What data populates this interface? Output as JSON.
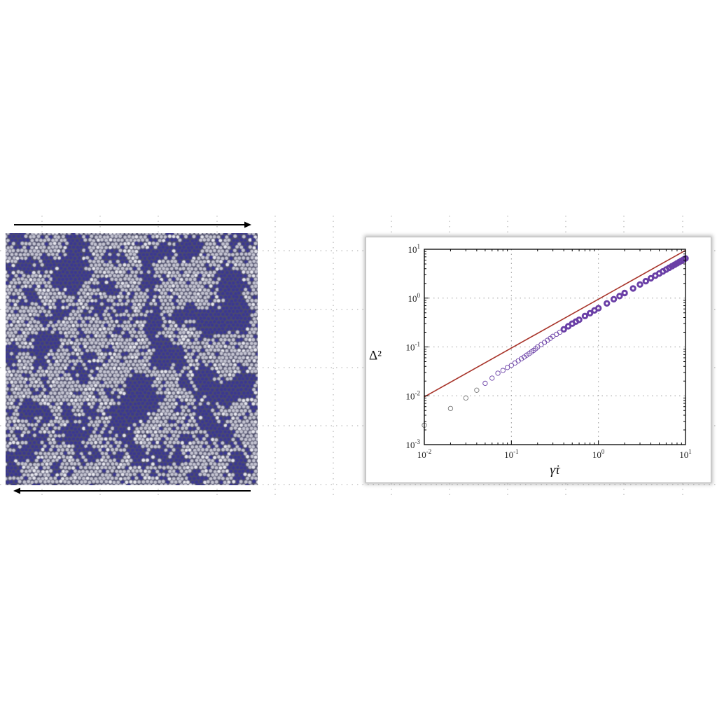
{
  "figure": {
    "left_panel": {
      "image": "particle-simulation-snapshot",
      "colors": {
        "particle_dark": "#3b3892",
        "particle_light": "#c4c4d2",
        "edge": "#55556a"
      },
      "arrow_top_direction": "right",
      "arrow_bottom_direction": "left"
    }
  },
  "chart_data": {
    "type": "scatter",
    "xlabel": "γ̇τ",
    "ylabel": "Δ²",
    "xscale": "log",
    "yscale": "log",
    "xlim": [
      0.01,
      10
    ],
    "ylim": [
      0.001,
      10
    ],
    "grid": true,
    "x_ticks": [
      {
        "base": "10",
        "exp": "-2",
        "value": 0.01
      },
      {
        "base": "10",
        "exp": "-1",
        "value": 0.1
      },
      {
        "base": "10",
        "exp": "0",
        "value": 1
      },
      {
        "base": "10",
        "exp": "1",
        "value": 10
      }
    ],
    "y_ticks": [
      {
        "base": "10",
        "exp": "-3",
        "value": 0.001
      },
      {
        "base": "10",
        "exp": "-2",
        "value": 0.01
      },
      {
        "base": "10",
        "exp": "-1",
        "value": 0.1
      },
      {
        "base": "10",
        "exp": "0",
        "value": 1
      },
      {
        "base": "10",
        "exp": "1",
        "value": 10
      }
    ],
    "series": [
      {
        "kind": "markers",
        "marker": "open-circle",
        "color": "#6a3fa6",
        "x": [
          0.01,
          0.02,
          0.03,
          0.04,
          0.05,
          0.06,
          0.07,
          0.08,
          0.09,
          0.1,
          0.11,
          0.12,
          0.13,
          0.14,
          0.15,
          0.16,
          0.17,
          0.18,
          0.19,
          0.2,
          0.22,
          0.24,
          0.26,
          0.28,
          0.3,
          0.33,
          0.36,
          0.4,
          0.45,
          0.5,
          0.55,
          0.6,
          0.7,
          0.8,
          0.9,
          1,
          1.25,
          1.5,
          1.75,
          2,
          2.5,
          3,
          3.5,
          4,
          4.5,
          5,
          5.5,
          6,
          6.5,
          7,
          7.5,
          8,
          8.5,
          9,
          9.5,
          10
        ],
        "y": [
          0.0025,
          0.0055,
          0.009,
          0.013,
          0.018,
          0.023,
          0.029,
          0.033,
          0.038,
          0.042,
          0.047,
          0.052,
          0.057,
          0.062,
          0.068,
          0.073,
          0.079,
          0.085,
          0.092,
          0.1,
          0.112,
          0.124,
          0.137,
          0.15,
          0.165,
          0.182,
          0.2,
          0.23,
          0.265,
          0.3,
          0.33,
          0.36,
          0.43,
          0.49,
          0.56,
          0.62,
          0.78,
          0.95,
          1.1,
          1.27,
          1.58,
          1.9,
          2.22,
          2.55,
          2.88,
          3.2,
          3.52,
          3.85,
          4.18,
          4.5,
          4.83,
          5.15,
          5.48,
          5.8,
          6.15,
          6.5
        ]
      },
      {
        "kind": "line",
        "color": "#a8342a",
        "x": [
          0.01,
          10
        ],
        "y": [
          0.0095,
          9.5
        ]
      }
    ]
  }
}
